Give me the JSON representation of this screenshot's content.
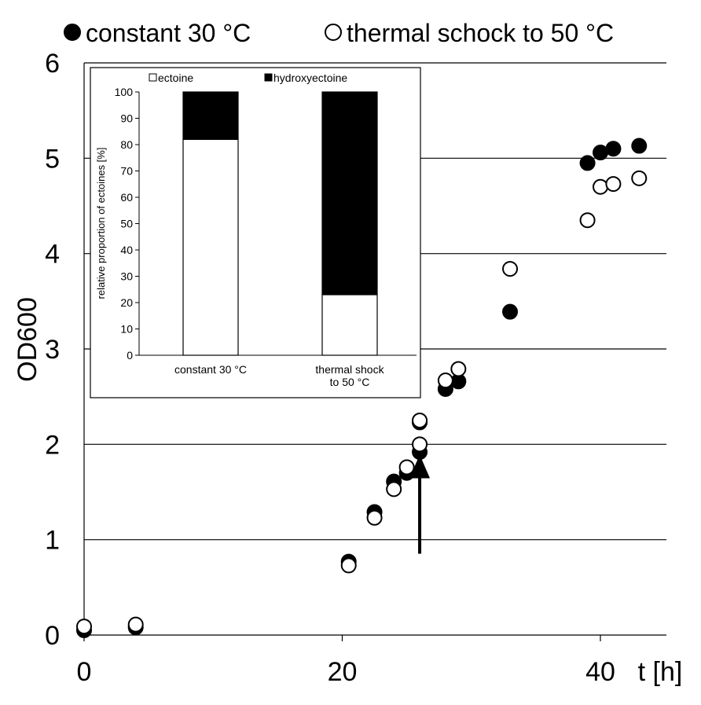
{
  "chart_data": [
    {
      "type": "scatter",
      "title": "",
      "xlabel": "t [h]",
      "ylabel": "OD600",
      "xlim": [
        0,
        45
      ],
      "ylim": [
        0,
        6
      ],
      "x_ticks": [
        0,
        20,
        40
      ],
      "y_ticks": [
        0,
        1,
        2,
        3,
        4,
        5,
        6
      ],
      "grid": "horizontal",
      "legend": "top",
      "series": [
        {
          "name": "constant 30 °C",
          "marker": "filled",
          "color": "#000000",
          "points": [
            {
              "x": 0,
              "y": 0.05
            },
            {
              "x": 4,
              "y": 0.08
            },
            {
              "x": 20.5,
              "y": 0.77
            },
            {
              "x": 22.5,
              "y": 1.29
            },
            {
              "x": 24,
              "y": 1.61
            },
            {
              "x": 25,
              "y": 1.7
            },
            {
              "x": 26,
              "y": 2.23
            },
            {
              "x": 26,
              "y": 1.92
            },
            {
              "x": 28,
              "y": 2.58
            },
            {
              "x": 29,
              "y": 2.66
            },
            {
              "x": 33,
              "y": 3.39
            },
            {
              "x": 39,
              "y": 4.95
            },
            {
              "x": 40,
              "y": 5.06
            },
            {
              "x": 41,
              "y": 5.1
            },
            {
              "x": 43,
              "y": 5.13
            }
          ]
        },
        {
          "name": "thermal schock to 50 °C",
          "marker": "open",
          "color": "#000000",
          "points": [
            {
              "x": 0,
              "y": 0.09
            },
            {
              "x": 4,
              "y": 0.11
            },
            {
              "x": 20.5,
              "y": 0.73
            },
            {
              "x": 22.5,
              "y": 1.23
            },
            {
              "x": 24,
              "y": 1.53
            },
            {
              "x": 25,
              "y": 1.76
            },
            {
              "x": 26,
              "y": 2.0
            },
            {
              "x": 26,
              "y": 2.25
            },
            {
              "x": 28,
              "y": 2.67
            },
            {
              "x": 29,
              "y": 2.79
            },
            {
              "x": 33,
              "y": 3.84
            },
            {
              "x": 39,
              "y": 4.35
            },
            {
              "x": 40,
              "y": 4.7
            },
            {
              "x": 41,
              "y": 4.73
            },
            {
              "x": 43,
              "y": 4.79
            }
          ]
        }
      ],
      "annotations": [
        {
          "type": "arrow",
          "x": 26,
          "y_from": 1.1,
          "y_to": 1.85
        }
      ]
    },
    {
      "type": "bar",
      "stacked": true,
      "title": "",
      "xlabel": "",
      "ylabel": "relative proportion of ectoines [%]",
      "ylim": [
        0,
        100
      ],
      "y_ticks": [
        0,
        10,
        20,
        30,
        40,
        50,
        60,
        70,
        80,
        90,
        100
      ],
      "categories": [
        "constant 30 °C",
        "thermal shock|to 50 °C"
      ],
      "legend": "top",
      "series": [
        {
          "name": "ectoine",
          "color": "#ffffff",
          "values": [
            82,
            23
          ]
        },
        {
          "name": "hydroxyectoine",
          "color": "#000000",
          "values": [
            18,
            77
          ]
        }
      ]
    }
  ]
}
